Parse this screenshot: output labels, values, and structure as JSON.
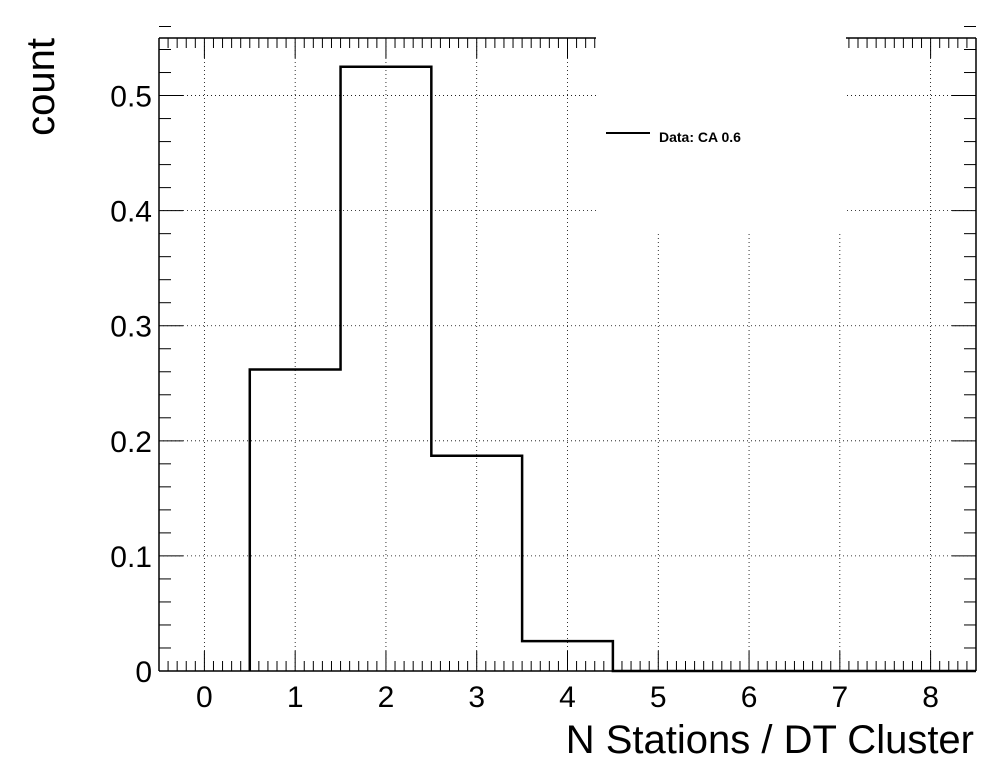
{
  "chart_data": {
    "type": "histogram",
    "title": "",
    "xlabel": "N Stations / DT Cluster",
    "ylabel": "count",
    "xlim": [
      -0.5,
      8.5
    ],
    "ylim": [
      0,
      0.55
    ],
    "grid": true,
    "x_ticks": [
      "0",
      "1",
      "2",
      "3",
      "4",
      "5",
      "6",
      "7",
      "8"
    ],
    "y_ticks": [
      "0",
      "0.1",
      "0.2",
      "0.3",
      "0.4",
      "0.5"
    ],
    "bins": [
      {
        "low": 0.5,
        "high": 1.5,
        "value": 0.262
      },
      {
        "low": 1.5,
        "high": 2.5,
        "value": 0.525
      },
      {
        "low": 2.5,
        "high": 3.5,
        "value": 0.187
      },
      {
        "low": 3.5,
        "high": 4.5,
        "value": 0.026
      }
    ],
    "series": [
      {
        "name": "Data: CA 0.6",
        "color": "#000000"
      }
    ],
    "legend_position": "top-right"
  }
}
